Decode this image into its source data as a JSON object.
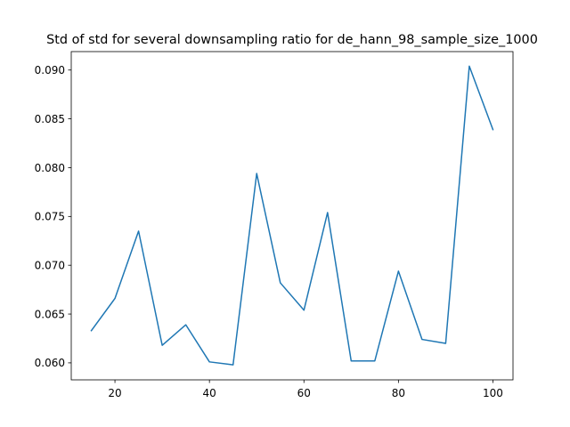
{
  "chart_data": {
    "type": "line",
    "title": "Std of std for several downsampling ratio for de_hann_98_sample_size_1000",
    "xlabel": "",
    "ylabel": "",
    "xlim": [
      10.75,
      104.25
    ],
    "ylim": [
      0.05826,
      0.09189
    ],
    "x_ticks": [
      20,
      40,
      60,
      80,
      100
    ],
    "y_ticks": [
      0.06,
      0.065,
      0.07,
      0.075,
      0.08,
      0.085,
      0.09
    ],
    "x_tick_labels": [
      "20",
      "40",
      "60",
      "80",
      "100"
    ],
    "y_tick_labels": [
      "0.060",
      "0.065",
      "0.070",
      "0.075",
      "0.080",
      "0.085",
      "0.090"
    ],
    "grid": false,
    "series": [
      {
        "color": "#1f77b4",
        "x": [
          15,
          20,
          25,
          30,
          35,
          40,
          45,
          50,
          55,
          60,
          65,
          70,
          75,
          80,
          85,
          90,
          95,
          100
        ],
        "y": [
          0.0633,
          0.0666,
          0.0735,
          0.0618,
          0.0639,
          0.0601,
          0.0598,
          0.0794,
          0.0682,
          0.0654,
          0.0754,
          0.0602,
          0.0602,
          0.0694,
          0.0624,
          0.062,
          0.0904,
          0.0839
        ]
      }
    ]
  }
}
